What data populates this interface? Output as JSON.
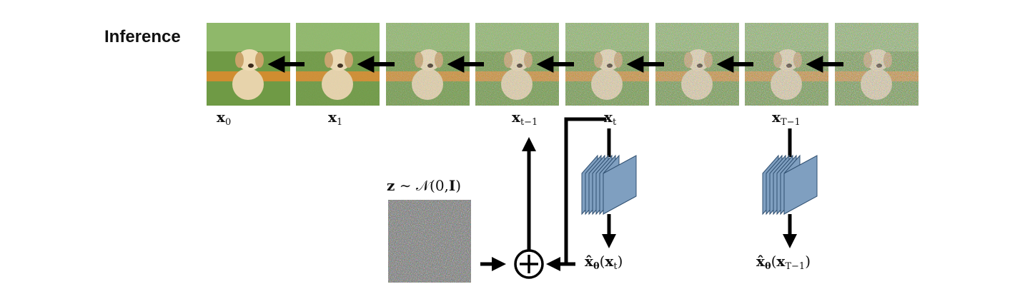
{
  "heading": "Inference",
  "frames": [
    {
      "label_var": "x",
      "label_sub": "0",
      "noise_level": 0.0
    },
    {
      "label_var": "x",
      "label_sub": "1",
      "noise_level": 0.15
    },
    {
      "label_var": "",
      "label_sub": "",
      "noise_level": 0.55
    },
    {
      "label_var": "x",
      "label_sub": "t−1",
      "noise_level": 0.65
    },
    {
      "label_var": "x",
      "label_sub": "t",
      "noise_level": 0.75
    },
    {
      "label_var": "",
      "label_sub": "",
      "noise_level": 0.85
    },
    {
      "label_var": "x",
      "label_sub": "T−1",
      "noise_level": 0.9
    },
    {
      "label_var": "",
      "label_sub": "",
      "noise_level": 0.96
    }
  ],
  "noise_label": {
    "z": "z",
    "sim": "∼",
    "dist": "𝒩",
    "args_open": "(0,",
    "identity": "I",
    "args_close": ")"
  },
  "outputs": [
    {
      "hat": "x̂",
      "theta": "θ",
      "arg": "x",
      "arg_sub": "t"
    },
    {
      "hat": "x̂",
      "theta": "θ",
      "arg": "x",
      "arg_sub": "T−1"
    }
  ],
  "plus_symbol": "+",
  "colors": {
    "arrow": "#000000",
    "network_fill": "#7f9fc0",
    "network_stroke": "#2f4f70",
    "grass": "#6f9a45",
    "flowers": "#e8892a",
    "dog": "#e7d3ab"
  }
}
